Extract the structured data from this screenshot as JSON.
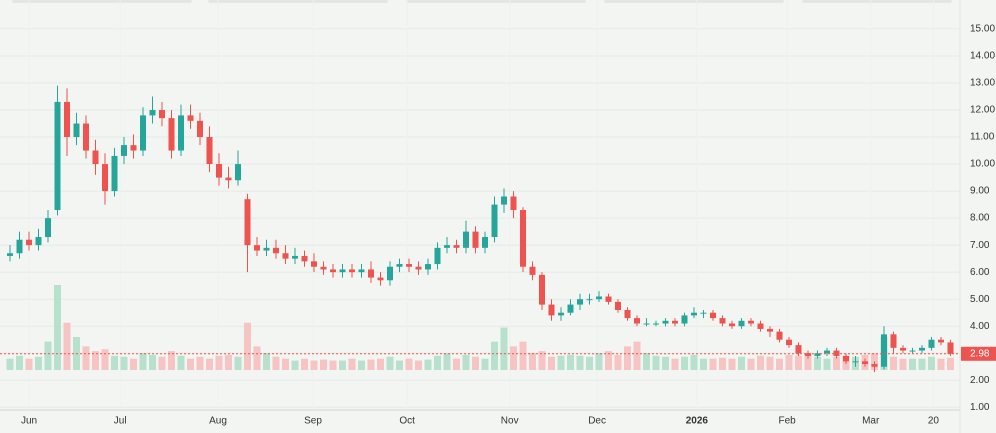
{
  "chart_data": {
    "type": "candlestick",
    "colors": {
      "up": "#26a69a",
      "down": "#ef5350",
      "up_volume": "#b7e1cd",
      "down_volume": "#f6c4c2"
    },
    "open": [
      6.6,
      6.7,
      7.2,
      7.0,
      7.3,
      8.3,
      12.3,
      11.0,
      11.5,
      10.5,
      10.0,
      9.0,
      10.3,
      10.7,
      10.5,
      11.8,
      12.0,
      11.7,
      10.5,
      11.8,
      11.6,
      11.0,
      10.0,
      9.5,
      9.4,
      8.7,
      7.0,
      6.8,
      6.9,
      6.7,
      6.5,
      6.6,
      6.4,
      6.2,
      6.1,
      6.0,
      6.1,
      6.0,
      6.1,
      5.8,
      5.7,
      6.2,
      6.3,
      6.2,
      6.1,
      6.3,
      6.9,
      7.0,
      6.9,
      7.5,
      6.9,
      7.3,
      8.5,
      8.8,
      8.3,
      6.2,
      5.9,
      4.8,
      4.4,
      4.5,
      4.8,
      5.0,
      5.0,
      5.1,
      4.9,
      4.6,
      4.3,
      4.1,
      4.1,
      4.1,
      4.2,
      4.1,
      4.4,
      4.5,
      4.5,
      4.3,
      4.1,
      4.0,
      4.2,
      4.1,
      3.9,
      3.8,
      3.5,
      3.3,
      3.0,
      2.9,
      3.0,
      3.1,
      2.9,
      2.7,
      2.7,
      2.6,
      2.5,
      3.7,
      3.2,
      3.1,
      3.1,
      3.2,
      3.5,
      3.4
    ],
    "high": [
      7.0,
      7.5,
      7.5,
      7.6,
      8.3,
      12.9,
      12.8,
      11.9,
      11.8,
      10.9,
      10.4,
      10.6,
      11.0,
      11.1,
      12.1,
      12.5,
      12.3,
      12.0,
      12.2,
      12.2,
      11.9,
      11.4,
      10.4,
      9.9,
      10.5,
      8.9,
      7.3,
      7.2,
      7.2,
      7.0,
      6.9,
      6.8,
      6.7,
      6.4,
      6.3,
      6.3,
      6.3,
      6.3,
      6.4,
      6.0,
      6.4,
      6.5,
      6.5,
      6.4,
      6.5,
      7.1,
      7.3,
      7.2,
      7.9,
      7.7,
      7.5,
      8.8,
      9.1,
      9.0,
      8.4,
      6.4,
      6.0,
      5.0,
      4.7,
      5.0,
      5.2,
      5.2,
      5.3,
      5.2,
      5.0,
      4.7,
      4.4,
      4.3,
      4.2,
      4.3,
      4.3,
      4.5,
      4.7,
      4.6,
      4.6,
      4.4,
      4.2,
      4.3,
      4.3,
      4.2,
      4.0,
      3.9,
      3.6,
      3.4,
      3.1,
      3.1,
      3.2,
      3.2,
      3.0,
      2.9,
      2.8,
      2.7,
      4.0,
      3.8,
      3.3,
      3.2,
      3.3,
      3.6,
      3.6,
      3.5
    ],
    "low": [
      6.4,
      6.5,
      6.8,
      6.8,
      7.1,
      8.1,
      10.3,
      10.7,
      10.2,
      9.6,
      8.5,
      8.8,
      10.0,
      10.2,
      10.3,
      11.5,
      11.4,
      10.2,
      10.3,
      11.3,
      10.7,
      9.7,
      9.2,
      9.1,
      9.2,
      6.0,
      6.6,
      6.6,
      6.5,
      6.3,
      6.3,
      6.2,
      6.0,
      5.9,
      5.8,
      5.8,
      5.8,
      5.8,
      5.6,
      5.5,
      5.5,
      6.0,
      6.0,
      5.9,
      5.9,
      6.1,
      6.7,
      6.7,
      6.7,
      6.7,
      6.7,
      7.1,
      8.2,
      8.0,
      6.0,
      5.7,
      4.6,
      4.2,
      4.2,
      4.4,
      4.6,
      4.8,
      4.9,
      4.8,
      4.5,
      4.2,
      4.0,
      4.0,
      4.0,
      4.0,
      4.0,
      4.0,
      4.3,
      4.3,
      4.2,
      4.0,
      3.9,
      3.9,
      4.0,
      3.8,
      3.6,
      3.4,
      3.2,
      2.9,
      2.8,
      2.8,
      2.9,
      2.8,
      2.6,
      2.5,
      2.5,
      2.3,
      2.4,
      3.0,
      3.0,
      3.0,
      3.0,
      3.1,
      3.3,
      2.9
    ],
    "close": [
      6.7,
      7.2,
      7.0,
      7.3,
      8.0,
      12.3,
      11.0,
      11.5,
      10.5,
      10.0,
      9.0,
      10.3,
      10.7,
      10.5,
      11.8,
      12.0,
      11.7,
      10.5,
      11.8,
      11.6,
      11.0,
      10.0,
      9.5,
      9.4,
      10.0,
      7.0,
      6.8,
      6.9,
      6.7,
      6.5,
      6.6,
      6.4,
      6.2,
      6.1,
      6.0,
      6.1,
      6.0,
      6.1,
      5.8,
      5.7,
      6.2,
      6.3,
      6.2,
      6.1,
      6.3,
      6.9,
      7.0,
      6.9,
      7.5,
      6.9,
      7.3,
      8.5,
      8.8,
      8.3,
      6.2,
      5.9,
      4.8,
      4.4,
      4.5,
      4.8,
      5.0,
      5.0,
      5.1,
      4.9,
      4.6,
      4.3,
      4.1,
      4.1,
      4.1,
      4.2,
      4.1,
      4.4,
      4.5,
      4.5,
      4.3,
      4.1,
      4.0,
      4.2,
      4.1,
      3.9,
      3.8,
      3.5,
      3.3,
      3.0,
      2.9,
      3.0,
      3.1,
      2.9,
      2.7,
      2.7,
      2.6,
      2.5,
      3.7,
      3.2,
      3.1,
      3.1,
      3.2,
      3.5,
      3.4,
      2.98
    ],
    "volume": [
      12,
      15,
      12,
      14,
      30,
      90,
      50,
      35,
      25,
      20,
      22,
      15,
      14,
      12,
      18,
      16,
      14,
      20,
      15,
      12,
      14,
      12,
      15,
      16,
      14,
      50,
      25,
      18,
      14,
      12,
      10,
      12,
      10,
      11,
      10,
      10,
      12,
      10,
      11,
      12,
      14,
      10,
      12,
      10,
      11,
      15,
      18,
      12,
      16,
      14,
      12,
      30,
      45,
      25,
      30,
      18,
      20,
      14,
      15,
      16,
      15,
      14,
      18,
      20,
      16,
      25,
      30,
      18,
      15,
      14,
      12,
      14,
      16,
      12,
      12,
      13,
      12,
      14,
      12,
      15,
      14,
      12,
      16,
      15,
      18,
      14,
      12,
      14,
      15,
      14,
      16,
      18,
      35,
      14,
      12,
      12,
      12,
      14,
      12,
      13
    ],
    "ylim": [
      0.9,
      16.07
    ],
    "yticks": [
      {
        "value": 1,
        "label": "1.00"
      },
      {
        "value": 2,
        "label": "2.00"
      },
      {
        "value": 3,
        "label": "3.00"
      },
      {
        "value": 4,
        "label": "4.00"
      },
      {
        "value": 5,
        "label": "5.00"
      },
      {
        "value": 6,
        "label": "6.00"
      },
      {
        "value": 7,
        "label": "7.00"
      },
      {
        "value": 8,
        "label": "8.00"
      },
      {
        "value": 9,
        "label": "9.00"
      },
      {
        "value": 10,
        "label": "10.00"
      },
      {
        "value": 11,
        "label": "11.00"
      },
      {
        "value": 12,
        "label": "12.00"
      },
      {
        "value": 13,
        "label": "13.00"
      },
      {
        "value": 14,
        "label": "14.00"
      },
      {
        "value": 15,
        "label": "15.00"
      }
    ],
    "xticks": [
      {
        "value": 2,
        "label": "Jun"
      },
      {
        "value": 11.6,
        "label": "Jul"
      },
      {
        "value": 21.9,
        "label": "Aug"
      },
      {
        "value": 31.9,
        "label": "Sep"
      },
      {
        "value": 41.8,
        "label": "Oct"
      },
      {
        "value": 52.6,
        "label": "Nov"
      },
      {
        "value": 61.8,
        "label": "Dec"
      },
      {
        "value": 72.3,
        "label": "2026"
      },
      {
        "value": 81.8,
        "label": "Feb"
      },
      {
        "value": 90.6,
        "label": "Mar"
      },
      {
        "value": 97.2,
        "label": "20"
      }
    ],
    "grid": true
  }
}
